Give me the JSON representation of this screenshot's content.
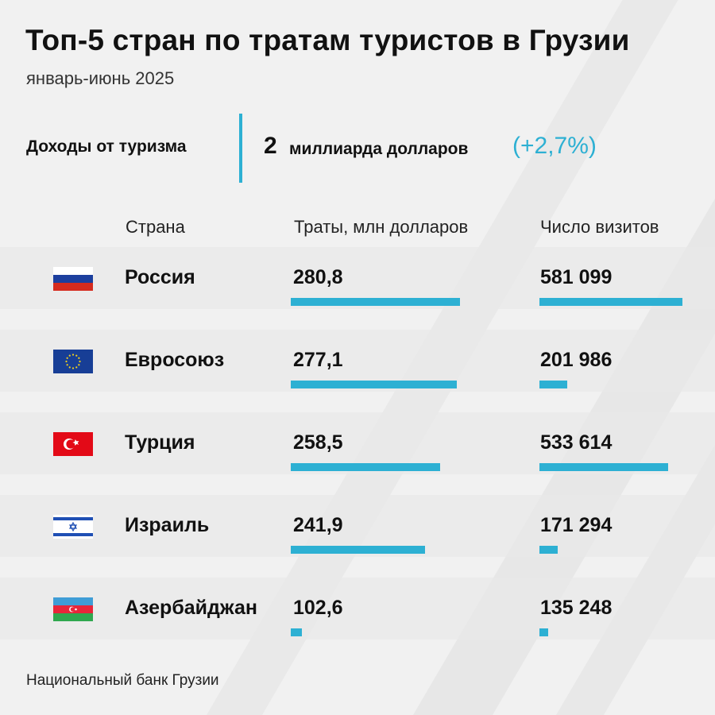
{
  "title": "Топ-5 стран по тратам туристов в Грузии",
  "subtitle": "январь-июнь 2025",
  "summary": {
    "label": "Доходы от туризма",
    "value": "2",
    "unit": "миллиарда долларов",
    "change": "(+2,7%)"
  },
  "headers": {
    "country": "Страна",
    "spend": "Траты, млн долларов",
    "visits": "Число визитов"
  },
  "colors": {
    "accent": "#2db0d3",
    "background": "#f1f1f1",
    "text": "#111111"
  },
  "chart_data": {
    "type": "bar",
    "categories": [
      "Россия",
      "Евросоюз",
      "Турция",
      "Израиль",
      "Азербайджан"
    ],
    "series": [
      {
        "name": "Траты, млн долларов",
        "values": [
          280.8,
          277.1,
          258.5,
          241.9,
          102.6
        ]
      },
      {
        "name": "Число визитов",
        "values": [
          581099,
          201986,
          533614,
          171294,
          135248
        ]
      }
    ],
    "value_labels": {
      "spend": [
        "280,8",
        "277,1",
        "258,5",
        "241,9",
        "102,6"
      ],
      "visits": [
        "581 099",
        "201 986",
        "533 614",
        "171 294",
        "135 248"
      ]
    },
    "flag_icons": [
      "russia-flag-icon",
      "eu-flag-icon",
      "turkey-flag-icon",
      "israel-flag-icon",
      "azerbaijan-flag-icon"
    ]
  },
  "source": "Национальный банк Грузии"
}
